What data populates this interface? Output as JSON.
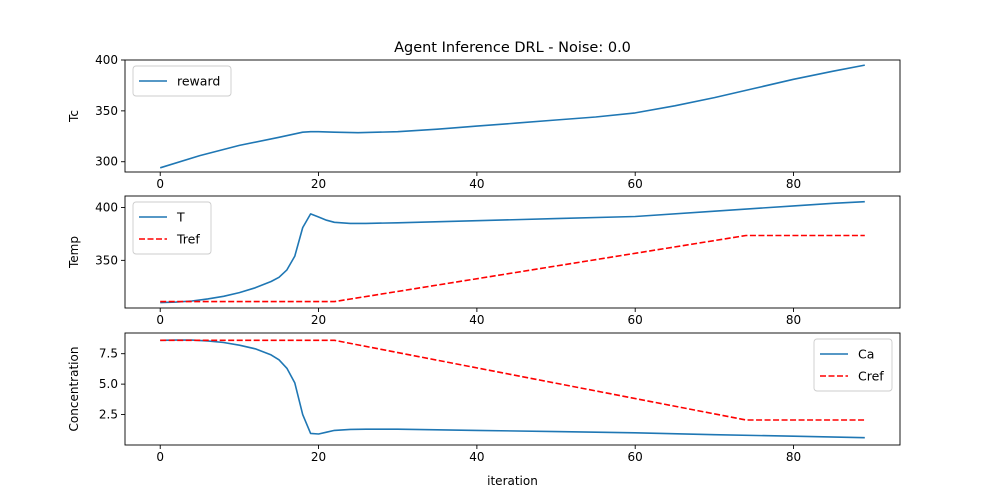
{
  "chart_data": [
    {
      "type": "line",
      "title": "Agent Inference DRL - Noise: 0.0",
      "xlabel": "",
      "ylabel": "Tc",
      "xlim": [
        -4.45,
        93.45
      ],
      "ylim": [
        289.9,
        400
      ],
      "xticks": [
        0,
        20,
        40,
        60,
        80
      ],
      "yticks": [
        300,
        350,
        400
      ],
      "grid": false,
      "legend_position": "top-left",
      "series": [
        {
          "name": "reward",
          "color": "#1f77b4",
          "dash": "solid",
          "x": [
            0,
            5,
            10,
            15,
            18,
            19,
            20,
            22,
            25,
            30,
            35,
            40,
            45,
            50,
            55,
            60,
            65,
            70,
            75,
            80,
            85,
            89
          ],
          "y": [
            294,
            306,
            316,
            324,
            329,
            329.5,
            329.5,
            329,
            328.5,
            329.5,
            332,
            335,
            338,
            341,
            344,
            348,
            355,
            363,
            372,
            381,
            389,
            395
          ]
        }
      ]
    },
    {
      "type": "line",
      "title": "",
      "xlabel": "",
      "ylabel": "Temp",
      "xlim": [
        -4.45,
        93.45
      ],
      "ylim": [
        304.9,
        410.9
      ],
      "xticks": [
        0,
        20,
        40,
        60,
        80
      ],
      "yticks": [
        350,
        400
      ],
      "grid": false,
      "legend_position": "top-left",
      "series": [
        {
          "name": "T",
          "color": "#1f77b4",
          "dash": "solid",
          "x": [
            0,
            2,
            4,
            6,
            8,
            10,
            12,
            14,
            15,
            16,
            17,
            18,
            19,
            20,
            21,
            22,
            24,
            26,
            30,
            40,
            50,
            60,
            70,
            80,
            85,
            89
          ],
          "y": [
            310,
            310.5,
            311.5,
            313.5,
            316,
            319.5,
            324,
            330,
            334,
            341,
            354,
            381,
            394,
            391,
            388,
            386,
            385,
            385,
            385.5,
            387.5,
            389.5,
            391.5,
            396.5,
            401.5,
            404,
            405.5
          ]
        },
        {
          "name": "Tref",
          "color": "#ff0000",
          "dash": "dashed",
          "x": [
            0,
            22,
            74,
            89
          ],
          "y": [
            311,
            311,
            373.5,
            373.5
          ]
        }
      ]
    },
    {
      "type": "line",
      "title": "",
      "xlabel": "iteration",
      "ylabel": "Concentration",
      "xlim": [
        -4.45,
        93.45
      ],
      "ylim": [
        0,
        9.2
      ],
      "xticks": [
        0,
        20,
        40,
        60,
        80
      ],
      "yticks": [
        2.5,
        5.0,
        7.5
      ],
      "grid": false,
      "legend_position": "top-right",
      "series": [
        {
          "name": "Ca",
          "color": "#1f77b4",
          "dash": "solid",
          "x": [
            0,
            2,
            4,
            6,
            8,
            10,
            12,
            14,
            15,
            16,
            17,
            18,
            19,
            20,
            21,
            22,
            24,
            26,
            30,
            40,
            50,
            60,
            70,
            80,
            89
          ],
          "y": [
            8.6,
            8.62,
            8.62,
            8.55,
            8.42,
            8.2,
            7.9,
            7.4,
            7.0,
            6.3,
            5.1,
            2.5,
            0.95,
            0.9,
            1.05,
            1.2,
            1.28,
            1.3,
            1.3,
            1.2,
            1.1,
            1.0,
            0.85,
            0.72,
            0.6
          ]
        },
        {
          "name": "Cref",
          "color": "#ff0000",
          "dash": "dashed",
          "x": [
            0,
            22,
            74,
            89
          ],
          "y": [
            8.6,
            8.6,
            2.05,
            2.05
          ]
        }
      ]
    }
  ]
}
